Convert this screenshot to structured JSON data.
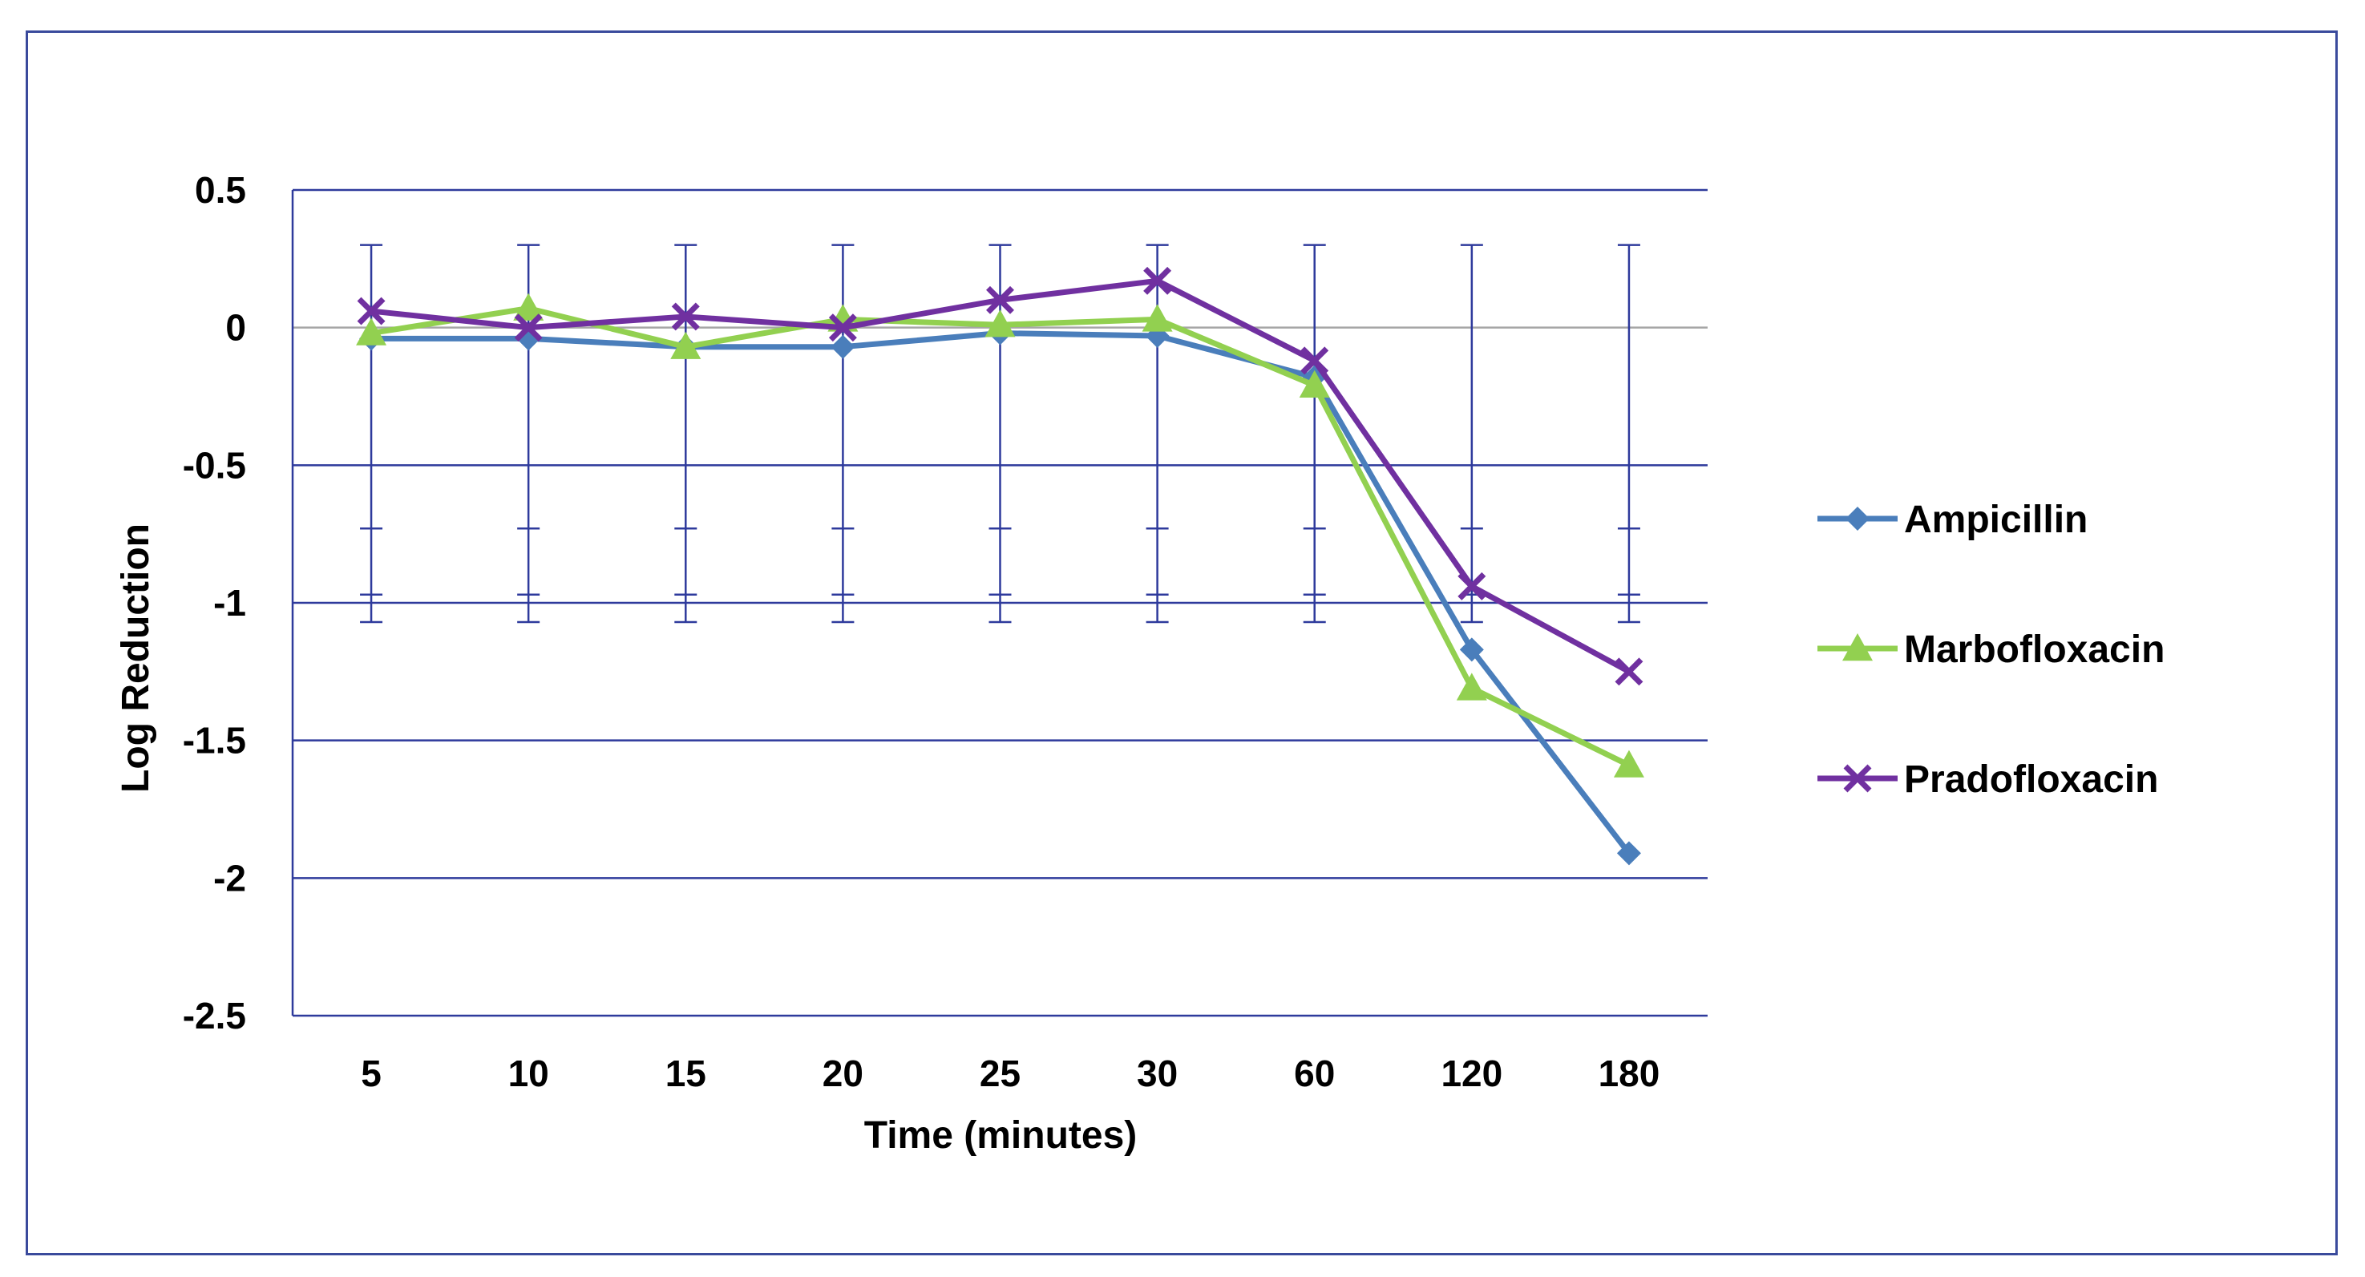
{
  "chart_data": {
    "type": "line",
    "title": "",
    "xlabel": "Time (minutes)",
    "ylabel": "Log Reduction",
    "categories": [
      "5",
      "10",
      "15",
      "20",
      "25",
      "30",
      "60",
      "120",
      "180"
    ],
    "ylim": [
      -2.5,
      0.5
    ],
    "yticks": [
      "0.5",
      "0",
      "-0.5",
      "-1",
      "-1.5",
      "-2",
      "-2.5"
    ],
    "ytick_values": [
      0.5,
      0,
      -0.5,
      -1,
      -1.5,
      -2,
      -2.5
    ],
    "grid": true,
    "legend_position": "right",
    "error_bars": {
      "upper": 0.3,
      "lower": -1.07,
      "inner_upper": -0.73,
      "inner_lower": -0.97
    },
    "series": [
      {
        "name": "Ampicillin",
        "color": "#4a7ebb",
        "marker": "diamond",
        "values": [
          -0.04,
          -0.04,
          -0.07,
          -0.07,
          -0.02,
          -0.03,
          -0.18,
          -1.17,
          -1.91
        ]
      },
      {
        "name": "Marbofloxacin",
        "color": "#92d050",
        "marker": "triangle",
        "values": [
          -0.02,
          0.07,
          -0.07,
          0.03,
          0.01,
          0.03,
          -0.21,
          -1.31,
          -1.59
        ]
      },
      {
        "name": "Pradofloxacin",
        "color": "#7030a0",
        "marker": "x",
        "values": [
          0.06,
          0.0,
          0.04,
          0.0,
          0.1,
          0.17,
          -0.12,
          -0.94,
          -1.25
        ]
      }
    ]
  }
}
